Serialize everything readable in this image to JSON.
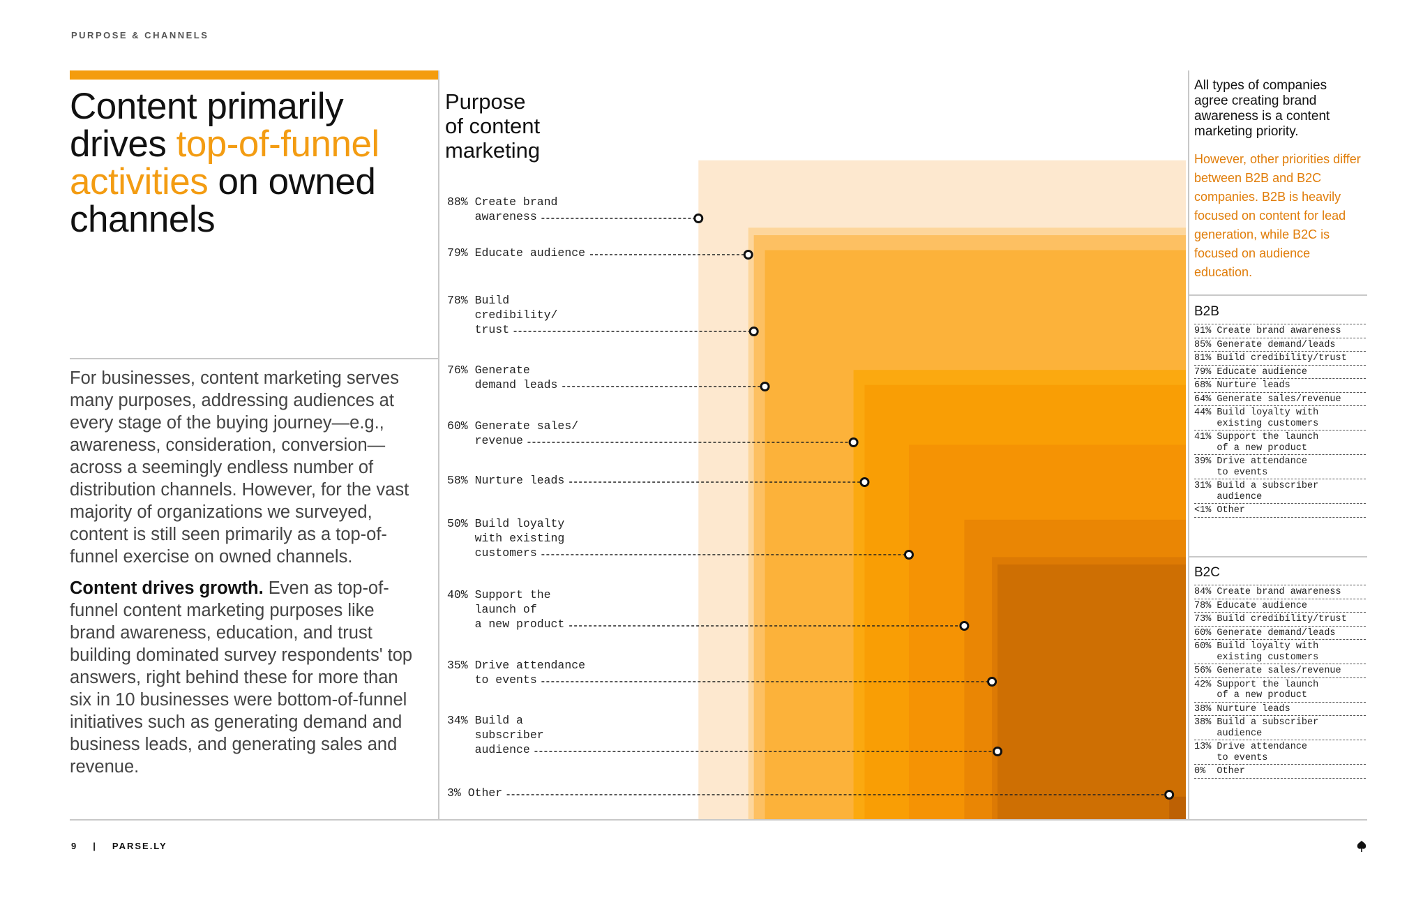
{
  "section_label": "PURPOSE & CHANNELS",
  "headline": {
    "part1": "Content primarily drives ",
    "highlight": "top-of-funnel activities",
    "part2": " on owned channels"
  },
  "body": {
    "paragraph1": "For businesses, content marketing serves many purposes, addressing audiences at every stage of the buying journey—e.g., awareness, consideration, conversion—across a seemingly endless number of distribution channels. However, for the vast majority of organizations we surveyed, content is still seen primarily as a top-of-funnel exercise on owned channels.",
    "paragraph2_bold": "Content drives growth.",
    "paragraph2": " Even as top-of-funnel content marketing purposes like brand awareness, education, and trust building dominated survey respondents' top answers, right behind these for more than six in 10 businesses were bottom-of-funnel initiatives such as generating demand and business leads, and generating sales and revenue."
  },
  "chart_title": "Purpose\nof content\nmarketing",
  "chart_data": {
    "type": "nested-area",
    "title": "Purpose of content marketing",
    "unit": "percent of respondents",
    "categories": [
      "Create brand awareness",
      "Educate audience",
      "Build credibility/ trust",
      "Generate demand leads",
      "Generate sales/ revenue",
      "Nurture leads",
      "Build loyalty with existing customers",
      "Support the launch of a new product",
      "Drive attendance to events",
      "Build a subscriber audience",
      "Other"
    ],
    "values": [
      88,
      79,
      78,
      76,
      60,
      58,
      50,
      40,
      35,
      34,
      3
    ],
    "labels": [
      "88% Create brand\n    awareness",
      "79% Educate audience",
      "78% Build\n    credibility/\n    trust",
      "76% Generate\n    demand leads",
      "60% Generate sales/\n    revenue",
      "58% Nurture leads",
      "50% Build loyalty\n    with existing\n    customers",
      "40% Support the\n    launch of\n    a new product",
      "35% Drive attendance\n    to events",
      "34% Build a\n    subscriber\n    audience",
      "3% Other"
    ],
    "colors": [
      "#fde8cf",
      "#fdd69c",
      "#fdc062",
      "#fcb23a",
      "#fba910",
      "#f99e05",
      "#f59304",
      "#ea8604",
      "#dd7a04",
      "#ce6f03",
      "#bd6104"
    ]
  },
  "sidebar": {
    "intro": "All types of companies agree creating brand awareness is a content marketing priority.",
    "note": "However, other priorities differ between B2B and B2C companies. B2B is heavily focused on content for lead generation, while B2C is focused on audience education.",
    "b2b": {
      "title": "B2B",
      "items": [
        "91% Create brand awareness",
        "85% Generate demand/leads",
        "81% Build credibility/trust",
        "79% Educate audience",
        "68% Nurture leads",
        "64% Generate sales/revenue",
        "44% Build loyalty with\n    existing customers",
        "41% Support the launch\n    of a new product",
        "39% Drive attendance\n    to events",
        "31% Build a subscriber\n    audience",
        "<1% Other"
      ]
    },
    "b2c": {
      "title": "B2C",
      "items": [
        "84% Create brand awareness",
        "78% Educate audience",
        "73% Build credibility/trust",
        "60% Generate demand/leads",
        "60% Build loyalty with\n    existing customers",
        "56% Generate sales/revenue",
        "42% Support the launch\n    of a new product",
        "38% Nurture leads",
        "38% Build a subscriber\n    audience",
        "13% Drive attendance\n    to events",
        "0%  Other"
      ]
    }
  },
  "footer": {
    "page_number": "9",
    "separator": "|",
    "brand": "PARSE.LY"
  },
  "logo_icon": "parsely-leaf-icon"
}
